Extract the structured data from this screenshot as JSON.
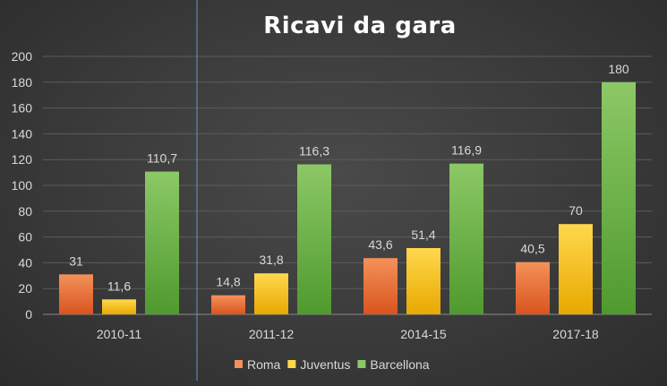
{
  "chart_data": {
    "type": "bar",
    "title": "Ricavi da gara",
    "categories": [
      "2010-11",
      "2011-12",
      "2014-15",
      "2017-18"
    ],
    "series": [
      {
        "name": "Roma",
        "values": [
          31,
          14.8,
          43.6,
          40.5
        ],
        "labels": [
          "31",
          "14,8",
          "43,6",
          "40,5"
        ]
      },
      {
        "name": "Juventus",
        "values": [
          11.6,
          31.8,
          51.4,
          70
        ],
        "labels": [
          "11,6",
          "31,8",
          "51,4",
          "70"
        ]
      },
      {
        "name": "Barcellona",
        "values": [
          110.7,
          116.3,
          116.9,
          180
        ],
        "labels": [
          "110,7",
          "116,3",
          "116,9",
          "180"
        ]
      }
    ],
    "ylim": [
      0,
      200
    ],
    "yticks": [
      0,
      20,
      40,
      60,
      80,
      100,
      120,
      140,
      160,
      180,
      200
    ],
    "grid": true,
    "legend_position": "bottom",
    "colors": {
      "Roma": [
        "#f4915a",
        "#d9541e"
      ],
      "Juventus": [
        "#ffd84d",
        "#e8a800"
      ],
      "Barcellona": [
        "#8cc866",
        "#4f9a2e"
      ]
    }
  }
}
